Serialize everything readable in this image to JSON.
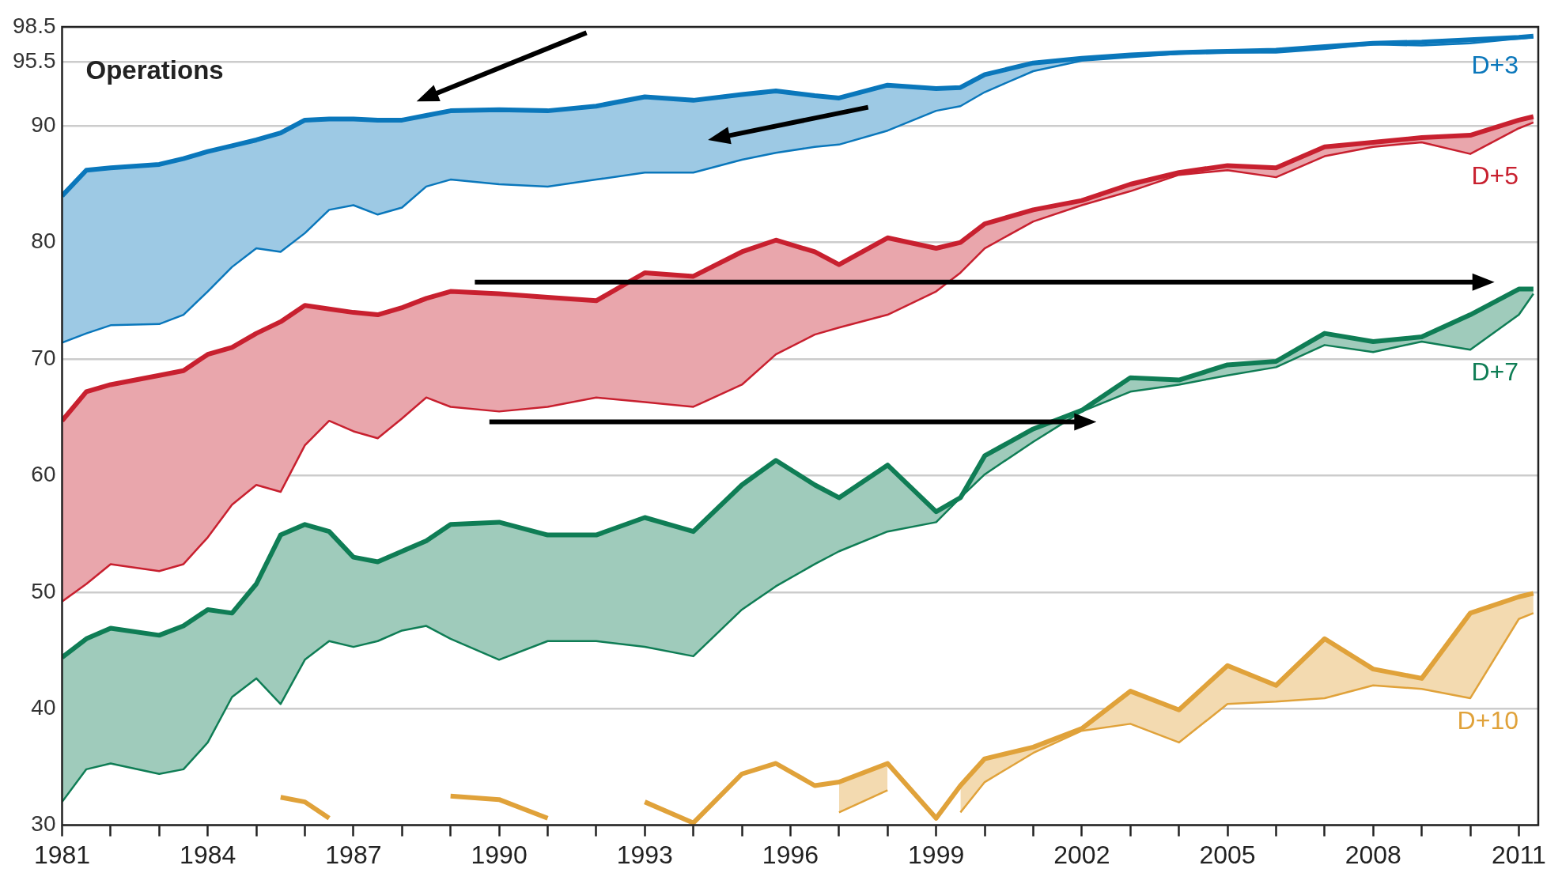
{
  "chart_data": {
    "type": "line",
    "title": "Operations",
    "x": [
      1981,
      1981.5,
      1982,
      1983,
      1983.5,
      1984,
      1984.5,
      1985,
      1985.5,
      1986,
      1986.5,
      1987,
      1987.5,
      1988,
      1988.5,
      1989,
      1990,
      1991,
      1992,
      1993,
      1994,
      1995,
      1995.7,
      1996.5,
      1997,
      1998,
      1999,
      1999.5,
      2000,
      2001,
      2002,
      2003,
      2004,
      2005,
      2006,
      2007,
      2008,
      2009,
      2010,
      2011,
      2011.3
    ],
    "xlim": [
      1981,
      2011.4
    ],
    "xticks": [
      1981,
      {
        "value": 1982,
        "label": null
      },
      {
        "value": 1983,
        "label": null
      },
      1984,
      {
        "value": 1985,
        "label": null
      },
      {
        "value": 1986,
        "label": null
      },
      1987,
      {
        "value": 1988,
        "label": null
      },
      {
        "value": 1989,
        "label": null
      },
      1990,
      {
        "value": 1991,
        "label": null
      },
      {
        "value": 1992,
        "label": null
      },
      1993,
      {
        "value": 1994,
        "label": null
      },
      {
        "value": 1995,
        "label": null
      },
      1996,
      {
        "value": 1997,
        "label": null
      },
      {
        "value": 1998,
        "label": null
      },
      1999,
      {
        "value": 2000,
        "label": null
      },
      {
        "value": 2001,
        "label": null
      },
      2002,
      {
        "value": 2003,
        "label": null
      },
      {
        "value": 2004,
        "label": null
      },
      2005,
      {
        "value": 2006,
        "label": null
      },
      {
        "value": 2007,
        "label": null
      },
      2008,
      {
        "value": 2009,
        "label": null
      },
      {
        "value": 2010,
        "label": null
      },
      2011
    ],
    "ylim": [
      30,
      98.5
    ],
    "yticks": [
      30,
      40,
      50,
      60,
      70,
      80,
      90,
      95.5,
      98.5
    ],
    "grid": "y",
    "legend": false,
    "marker": "none",
    "line_style": "solid",
    "series": [
      {
        "name": "D+3",
        "color": "#0a77bb",
        "values": [
          84.0,
          86.2,
          86.4,
          86.7,
          87.2,
          87.8,
          88.3,
          88.8,
          89.4,
          90.5,
          90.6,
          90.6,
          90.5,
          90.5,
          90.9,
          91.3,
          91.4,
          91.3,
          91.7,
          92.5,
          92.2,
          92.7,
          93.0,
          92.6,
          92.4,
          93.5,
          93.2,
          93.3,
          94.4,
          95.4,
          95.8,
          96.1,
          96.3,
          96.4,
          96.5,
          96.8,
          97.1,
          97.2,
          97.4,
          97.6,
          97.7
        ],
        "upper": [
          84.0,
          86.2,
          86.4,
          86.7,
          87.2,
          87.8,
          88.3,
          88.8,
          89.4,
          90.5,
          90.6,
          90.6,
          90.5,
          90.5,
          90.9,
          91.3,
          91.4,
          91.3,
          91.7,
          92.5,
          92.2,
          92.7,
          93.0,
          92.6,
          92.4,
          93.5,
          93.2,
          93.3,
          94.4,
          95.4,
          95.8,
          96.1,
          96.3,
          96.4,
          96.5,
          96.8,
          97.1,
          97.2,
          97.4,
          97.6,
          97.7
        ],
        "lower": [
          71.4,
          72.2,
          72.9,
          73.0,
          73.8,
          75.8,
          77.9,
          79.5,
          79.2,
          80.8,
          82.8,
          83.2,
          82.4,
          83.0,
          84.8,
          85.4,
          85.0,
          84.8,
          85.4,
          86.0,
          86.0,
          87.1,
          87.7,
          88.2,
          88.4,
          89.6,
          91.3,
          91.7,
          92.9,
          94.7,
          95.6,
          95.9,
          96.2,
          96.3,
          96.3,
          96.6,
          97.0,
          96.9,
          97.1,
          97.5,
          97.6
        ]
      },
      {
        "color": "#0a77bb",
        "values": [
          71.4,
          72.2,
          72.9,
          73.0,
          73.8,
          75.8,
          77.9,
          79.5,
          79.2,
          80.8,
          82.8,
          83.2,
          82.4,
          83.0,
          84.8,
          85.4,
          85.0,
          84.8,
          85.4,
          86.0,
          86.0,
          87.1,
          87.7,
          88.2,
          88.4,
          89.6,
          91.3,
          91.7,
          92.9,
          94.7,
          95.6,
          95.9,
          96.2,
          96.3,
          96.3,
          96.6,
          97.0,
          96.9,
          97.1,
          97.5,
          97.6
        ]
      },
      {
        "name": "D+5",
        "color": "#c8202f",
        "values": [
          64.7,
          67.2,
          67.8,
          68.6,
          69.0,
          70.4,
          71.0,
          72.2,
          73.2,
          74.6,
          74.3,
          74.0,
          73.8,
          74.4,
          75.2,
          75.8,
          75.6,
          75.3,
          75.0,
          77.4,
          77.1,
          79.2,
          80.2,
          79.2,
          78.1,
          80.4,
          79.5,
          80.0,
          81.6,
          82.8,
          83.6,
          85.0,
          86.0,
          86.6,
          86.4,
          88.2,
          88.6,
          89.0,
          89.2,
          90.5,
          90.8
        ],
        "upper": [
          64.7,
          67.2,
          67.8,
          68.6,
          69.0,
          70.4,
          71.0,
          72.2,
          73.2,
          74.6,
          74.3,
          74.0,
          73.8,
          74.4,
          75.2,
          75.8,
          75.6,
          75.3,
          75.0,
          77.4,
          77.1,
          79.2,
          80.2,
          79.2,
          78.1,
          80.4,
          79.5,
          80.0,
          81.6,
          82.8,
          83.6,
          85.0,
          86.0,
          86.6,
          86.4,
          88.2,
          88.6,
          89.0,
          89.2,
          90.5,
          90.8
        ],
        "lower": [
          49.2,
          50.7,
          52.4,
          51.8,
          52.4,
          54.7,
          57.5,
          59.2,
          58.6,
          62.6,
          64.7,
          63.8,
          63.2,
          64.9,
          66.7,
          65.9,
          65.5,
          65.9,
          66.7,
          66.3,
          65.9,
          67.8,
          70.4,
          72.1,
          72.7,
          73.8,
          75.8,
          77.4,
          79.5,
          81.8,
          83.2,
          84.4,
          85.8,
          86.2,
          85.6,
          87.4,
          88.2,
          88.6,
          87.6,
          89.8,
          90.3
        ]
      },
      {
        "color": "#c8202f",
        "values": [
          49.2,
          50.7,
          52.4,
          51.8,
          52.4,
          54.7,
          57.5,
          59.2,
          58.6,
          62.6,
          64.7,
          63.8,
          63.2,
          64.9,
          66.7,
          65.9,
          65.5,
          65.9,
          66.7,
          66.3,
          65.9,
          67.8,
          70.4,
          72.1,
          72.7,
          73.8,
          75.8,
          77.4,
          79.5,
          81.8,
          83.2,
          84.4,
          85.8,
          86.2,
          85.6,
          87.4,
          88.2,
          88.6,
          87.6,
          89.8,
          90.3
        ]
      },
      {
        "name": "D+7",
        "color": "#0f7d55",
        "values": [
          44.4,
          46.0,
          46.9,
          46.3,
          47.1,
          48.5,
          48.2,
          50.7,
          54.9,
          55.8,
          55.2,
          53.0,
          52.6,
          53.5,
          54.4,
          55.8,
          56.0,
          54.9,
          54.9,
          56.4,
          55.2,
          59.2,
          61.3,
          59.2,
          58.1,
          60.9,
          56.9,
          58.1,
          61.7,
          64.0,
          65.6,
          68.4,
          68.2,
          69.5,
          69.8,
          72.2,
          71.5,
          71.9,
          73.8,
          76.0,
          76.0
        ],
        "upper": [
          44.4,
          46.0,
          46.9,
          46.3,
          47.1,
          48.5,
          48.2,
          50.7,
          54.9,
          55.8,
          55.2,
          53.0,
          52.6,
          53.5,
          54.4,
          55.8,
          56.0,
          54.9,
          54.9,
          56.4,
          55.2,
          59.2,
          61.3,
          59.2,
          58.1,
          60.9,
          56.9,
          58.1,
          61.7,
          64.0,
          65.6,
          68.4,
          68.2,
          69.5,
          69.8,
          72.2,
          71.5,
          71.9,
          73.8,
          76.0,
          76.0
        ],
        "lower": [
          32.0,
          34.8,
          35.3,
          34.4,
          34.8,
          37.1,
          41.0,
          42.6,
          40.4,
          44.2,
          45.8,
          45.3,
          45.8,
          46.7,
          47.1,
          46.0,
          44.2,
          45.8,
          45.8,
          45.3,
          44.5,
          48.5,
          50.5,
          52.4,
          53.5,
          55.2,
          56.0,
          58.1,
          60.1,
          62.9,
          65.5,
          67.2,
          67.8,
          68.6,
          69.3,
          71.2,
          70.6,
          71.5,
          70.8,
          73.8,
          75.6
        ]
      },
      {
        "color": "#0f7d55",
        "values": [
          32.0,
          34.8,
          35.3,
          34.4,
          34.8,
          37.1,
          41.0,
          42.6,
          40.4,
          44.2,
          45.8,
          45.3,
          45.8,
          46.7,
          47.1,
          46.0,
          44.2,
          45.8,
          45.8,
          45.3,
          44.5,
          48.5,
          50.5,
          52.4,
          53.5,
          55.2,
          56.0,
          58.1,
          60.1,
          62.9,
          65.5,
          67.2,
          67.8,
          68.6,
          69.3,
          71.2,
          70.6,
          71.5,
          70.8,
          73.8,
          75.6
        ]
      },
      {
        "name": "D+10",
        "color": "#e0a23a",
        "values": [
          null,
          null,
          null,
          null,
          null,
          null,
          null,
          null,
          32.4,
          32.0,
          30.6,
          null,
          null,
          null,
          null,
          32.5,
          32.2,
          30.6,
          null,
          32.0,
          30.2,
          34.4,
          35.3,
          33.4,
          33.7,
          35.3,
          30.6,
          33.4,
          35.7,
          36.7,
          38.3,
          41.5,
          39.9,
          43.7,
          42.0,
          46.0,
          43.4,
          42.6,
          48.2,
          49.6,
          49.9
        ],
        "upper": [
          null,
          null,
          null,
          null,
          null,
          null,
          null,
          null,
          null,
          null,
          null,
          null,
          null,
          null,
          null,
          null,
          null,
          null,
          null,
          null,
          null,
          null,
          null,
          null,
          33.7,
          35.3,
          null,
          33.4,
          35.7,
          36.7,
          38.3,
          41.5,
          39.9,
          43.7,
          42.0,
          46.0,
          43.4,
          42.6,
          48.2,
          49.6,
          49.9
        ],
        "lower": [
          null,
          null,
          null,
          null,
          null,
          null,
          null,
          null,
          null,
          null,
          null,
          null,
          null,
          null,
          null,
          null,
          null,
          null,
          null,
          null,
          null,
          null,
          null,
          null,
          31.1,
          33.0,
          null,
          31.1,
          33.7,
          36.2,
          38.1,
          38.7,
          37.1,
          40.4,
          40.6,
          40.9,
          42.0,
          41.7,
          40.9,
          47.7,
          48.2
        ]
      },
      {
        "color": "#e0a23a",
        "values": [
          null,
          null,
          null,
          null,
          null,
          null,
          null,
          null,
          null,
          null,
          null,
          null,
          null,
          null,
          null,
          null,
          null,
          null,
          null,
          null,
          null,
          null,
          null,
          null,
          31.1,
          33.0,
          null,
          31.1,
          33.7,
          36.2,
          38.1,
          38.7,
          37.1,
          40.4,
          40.6,
          40.9,
          42.0,
          41.7,
          40.9,
          47.7,
          48.2
        ]
      }
    ]
  }
}
